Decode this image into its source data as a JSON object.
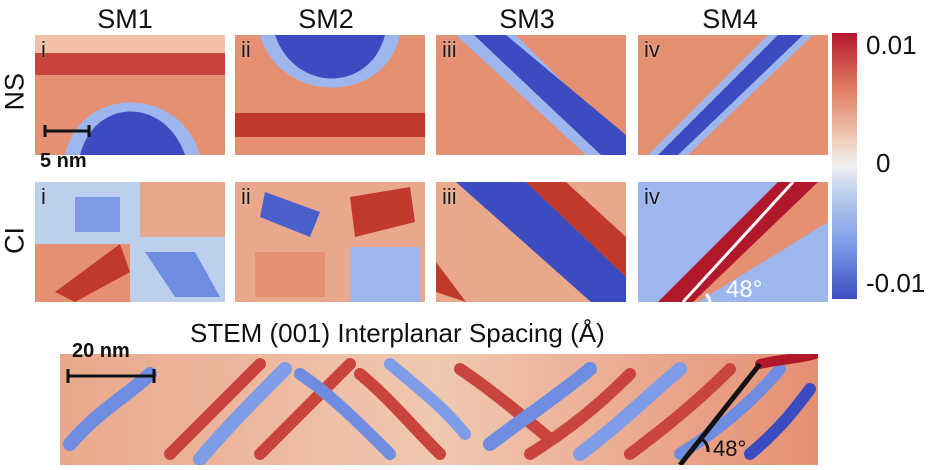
{
  "column_titles": [
    "SM1",
    "SM2",
    "SM3",
    "SM4"
  ],
  "row_labels": {
    "ns": "NS",
    "ci": "CI"
  },
  "panel_labels": [
    "i",
    "ii",
    "iii",
    "iv"
  ],
  "scalebar_small": "5 nm",
  "scalebar_large": "20 nm",
  "colorbar": {
    "max": "0.01",
    "mid": "0",
    "min": "-0.01"
  },
  "angle_sm4": "48°",
  "angle_stem": "48°",
  "stem_title": "STEM (001) Interplanar Spacing (Å)",
  "colors": {
    "red": "#b2182b",
    "blue": "#3a4cc0",
    "white": "#f0f0f0"
  }
}
